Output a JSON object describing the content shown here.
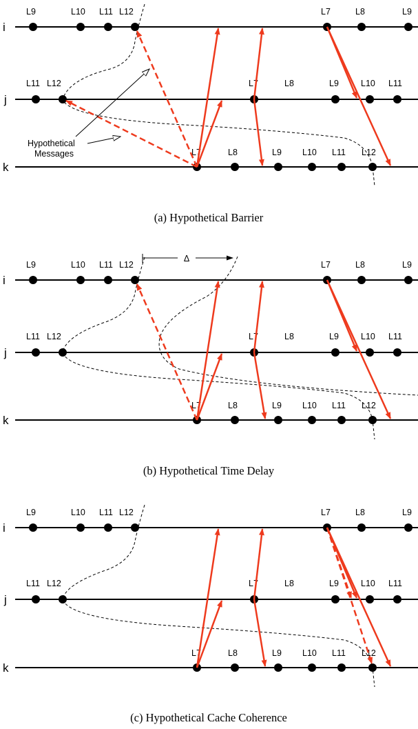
{
  "panels": [
    {
      "caption": "(a) Hypothetical Barrier",
      "timelines": [
        {
          "name": "i",
          "labels": [
            "L9",
            "L10",
            "L11",
            "L12",
            "L7",
            "L8",
            "L9"
          ]
        },
        {
          "name": "j",
          "labels": [
            "L11",
            "L12",
            "L7",
            "L8",
            "L9",
            "L10",
            "L11"
          ]
        },
        {
          "name": "k",
          "labels": [
            "L7",
            "L8",
            "L9",
            "L10",
            "L11",
            "L12"
          ]
        }
      ],
      "annotation": [
        "Hypothetical",
        "Messages"
      ]
    },
    {
      "caption": "(b) Hypothetical Time Delay",
      "timelines": [
        {
          "name": "i",
          "labels": [
            "L9",
            "L10",
            "L11",
            "L12",
            "L7",
            "L8",
            "L9"
          ]
        },
        {
          "name": "j",
          "labels": [
            "L11",
            "L12",
            "L7",
            "L8",
            "L9",
            "L10",
            "L11"
          ]
        },
        {
          "name": "k",
          "labels": [
            "L7",
            "L8",
            "L9",
            "L10",
            "L11",
            "L12"
          ]
        }
      ],
      "delta_label": "Δ"
    },
    {
      "caption": "(c) Hypothetical Cache Coherence",
      "timelines": [
        {
          "name": "i",
          "labels": [
            "L9",
            "L10",
            "L11",
            "L12",
            "L7",
            "L8",
            "L9"
          ]
        },
        {
          "name": "j",
          "labels": [
            "L11",
            "L12",
            "L7",
            "L8",
            "L9",
            "L10",
            "L11"
          ]
        },
        {
          "name": "k",
          "labels": [
            "L7",
            "L8",
            "L9",
            "L10",
            "L11",
            "L12"
          ]
        }
      ]
    }
  ],
  "colors": {
    "message": "#ee3a1d",
    "line": "#000000"
  }
}
